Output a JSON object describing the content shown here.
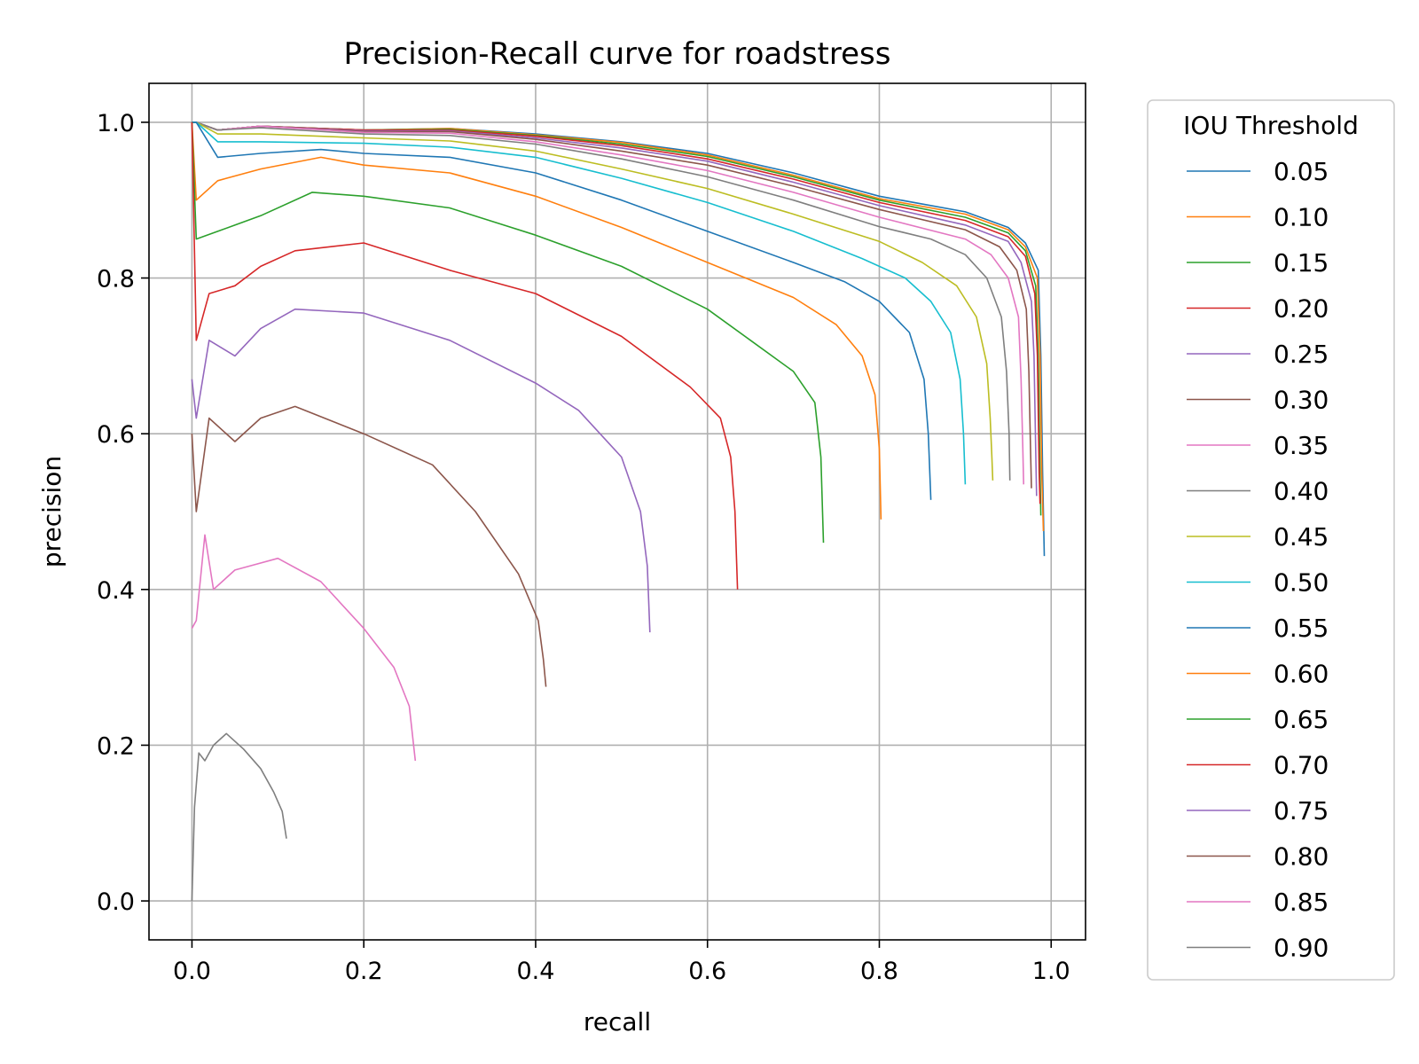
{
  "chart_data": {
    "type": "line",
    "title": "Precision-Recall curve for roadstress",
    "xlabel": "recall",
    "ylabel": "precision",
    "xlim": [
      -0.05,
      1.04
    ],
    "ylim": [
      -0.05,
      1.05
    ],
    "xticks": [
      0.0,
      0.2,
      0.4,
      0.6,
      0.8,
      1.0
    ],
    "xtick_labels": [
      "0.0",
      "0.2",
      "0.4",
      "0.6",
      "0.8",
      "1.0"
    ],
    "yticks": [
      0.0,
      0.2,
      0.4,
      0.6,
      0.8,
      1.0
    ],
    "ytick_labels": [
      "0.0",
      "0.2",
      "0.4",
      "0.6",
      "0.8",
      "1.0"
    ],
    "grid": true,
    "legend": {
      "title": "IOU Threshold",
      "placement": "outside-right"
    },
    "series": [
      {
        "name": "0.05",
        "color": "#1f77b4",
        "points": [
          [
            0.0,
            1.0
          ],
          [
            0.005,
            1.0
          ],
          [
            0.03,
            0.99
          ],
          [
            0.08,
            0.995
          ],
          [
            0.2,
            0.99
          ],
          [
            0.3,
            0.992
          ],
          [
            0.4,
            0.985
          ],
          [
            0.5,
            0.975
          ],
          [
            0.6,
            0.96
          ],
          [
            0.7,
            0.935
          ],
          [
            0.8,
            0.905
          ],
          [
            0.9,
            0.885
          ],
          [
            0.95,
            0.865
          ],
          [
            0.97,
            0.845
          ],
          [
            0.985,
            0.81
          ],
          [
            0.988,
            0.7
          ],
          [
            0.99,
            0.55
          ],
          [
            0.992,
            0.443
          ]
        ]
      },
      {
        "name": "0.10",
        "color": "#ff7f0e",
        "points": [
          [
            0.0,
            1.0
          ],
          [
            0.005,
            1.0
          ],
          [
            0.03,
            0.99
          ],
          [
            0.08,
            0.995
          ],
          [
            0.2,
            0.99
          ],
          [
            0.3,
            0.992
          ],
          [
            0.4,
            0.984
          ],
          [
            0.5,
            0.974
          ],
          [
            0.6,
            0.958
          ],
          [
            0.7,
            0.932
          ],
          [
            0.8,
            0.902
          ],
          [
            0.9,
            0.882
          ],
          [
            0.95,
            0.862
          ],
          [
            0.97,
            0.84
          ],
          [
            0.984,
            0.8
          ],
          [
            0.987,
            0.7
          ],
          [
            0.989,
            0.55
          ],
          [
            0.991,
            0.475
          ]
        ]
      },
      {
        "name": "0.15",
        "color": "#2ca02c",
        "points": [
          [
            0.0,
            1.0
          ],
          [
            0.005,
            1.0
          ],
          [
            0.03,
            0.99
          ],
          [
            0.08,
            0.995
          ],
          [
            0.2,
            0.99
          ],
          [
            0.3,
            0.991
          ],
          [
            0.4,
            0.983
          ],
          [
            0.5,
            0.972
          ],
          [
            0.6,
            0.956
          ],
          [
            0.7,
            0.93
          ],
          [
            0.8,
            0.9
          ],
          [
            0.9,
            0.878
          ],
          [
            0.95,
            0.858
          ],
          [
            0.97,
            0.835
          ],
          [
            0.982,
            0.79
          ],
          [
            0.985,
            0.7
          ],
          [
            0.987,
            0.55
          ],
          [
            0.988,
            0.495
          ]
        ]
      },
      {
        "name": "0.20",
        "color": "#d62728",
        "points": [
          [
            0.0,
            1.0
          ],
          [
            0.005,
            1.0
          ],
          [
            0.03,
            0.99
          ],
          [
            0.08,
            0.995
          ],
          [
            0.2,
            0.99
          ],
          [
            0.3,
            0.99
          ],
          [
            0.4,
            0.982
          ],
          [
            0.5,
            0.97
          ],
          [
            0.6,
            0.953
          ],
          [
            0.7,
            0.927
          ],
          [
            0.8,
            0.897
          ],
          [
            0.9,
            0.874
          ],
          [
            0.95,
            0.853
          ],
          [
            0.97,
            0.828
          ],
          [
            0.981,
            0.78
          ],
          [
            0.984,
            0.7
          ],
          [
            0.986,
            0.55
          ],
          [
            0.987,
            0.51
          ]
        ]
      },
      {
        "name": "0.25",
        "color": "#9467bd",
        "points": [
          [
            0.0,
            1.0
          ],
          [
            0.005,
            1.0
          ],
          [
            0.03,
            0.99
          ],
          [
            0.08,
            0.995
          ],
          [
            0.2,
            0.989
          ],
          [
            0.3,
            0.989
          ],
          [
            0.4,
            0.98
          ],
          [
            0.5,
            0.967
          ],
          [
            0.6,
            0.95
          ],
          [
            0.7,
            0.923
          ],
          [
            0.8,
            0.893
          ],
          [
            0.9,
            0.868
          ],
          [
            0.95,
            0.847
          ],
          [
            0.965,
            0.82
          ],
          [
            0.977,
            0.77
          ],
          [
            0.98,
            0.7
          ],
          [
            0.982,
            0.58
          ],
          [
            0.983,
            0.52
          ]
        ]
      },
      {
        "name": "0.30",
        "color": "#8c564b",
        "points": [
          [
            0.0,
            1.0
          ],
          [
            0.005,
            1.0
          ],
          [
            0.03,
            0.99
          ],
          [
            0.08,
            0.995
          ],
          [
            0.2,
            0.988
          ],
          [
            0.3,
            0.988
          ],
          [
            0.4,
            0.978
          ],
          [
            0.5,
            0.963
          ],
          [
            0.6,
            0.945
          ],
          [
            0.7,
            0.918
          ],
          [
            0.8,
            0.888
          ],
          [
            0.9,
            0.862
          ],
          [
            0.94,
            0.84
          ],
          [
            0.96,
            0.81
          ],
          [
            0.971,
            0.76
          ],
          [
            0.974,
            0.68
          ],
          [
            0.976,
            0.58
          ],
          [
            0.977,
            0.53
          ]
        ]
      },
      {
        "name": "0.35",
        "color": "#e377c2",
        "points": [
          [
            0.0,
            1.0
          ],
          [
            0.005,
            1.0
          ],
          [
            0.03,
            0.99
          ],
          [
            0.08,
            0.995
          ],
          [
            0.2,
            0.987
          ],
          [
            0.3,
            0.986
          ],
          [
            0.4,
            0.975
          ],
          [
            0.5,
            0.958
          ],
          [
            0.6,
            0.938
          ],
          [
            0.7,
            0.91
          ],
          [
            0.8,
            0.878
          ],
          [
            0.9,
            0.85
          ],
          [
            0.93,
            0.83
          ],
          [
            0.95,
            0.8
          ],
          [
            0.962,
            0.75
          ],
          [
            0.965,
            0.67
          ],
          [
            0.967,
            0.58
          ],
          [
            0.968,
            0.535
          ]
        ]
      },
      {
        "name": "0.40",
        "color": "#7f7f7f",
        "points": [
          [
            0.0,
            1.0
          ],
          [
            0.005,
            1.0
          ],
          [
            0.03,
            0.99
          ],
          [
            0.08,
            0.993
          ],
          [
            0.2,
            0.985
          ],
          [
            0.3,
            0.983
          ],
          [
            0.4,
            0.972
          ],
          [
            0.5,
            0.953
          ],
          [
            0.6,
            0.93
          ],
          [
            0.7,
            0.9
          ],
          [
            0.8,
            0.866
          ],
          [
            0.86,
            0.85
          ],
          [
            0.9,
            0.83
          ],
          [
            0.925,
            0.8
          ],
          [
            0.942,
            0.75
          ],
          [
            0.948,
            0.68
          ],
          [
            0.951,
            0.6
          ],
          [
            0.952,
            0.54
          ]
        ]
      },
      {
        "name": "0.45",
        "color": "#bcbd22",
        "points": [
          [
            0.0,
            1.0
          ],
          [
            0.005,
            1.0
          ],
          [
            0.03,
            0.985
          ],
          [
            0.08,
            0.985
          ],
          [
            0.2,
            0.98
          ],
          [
            0.3,
            0.976
          ],
          [
            0.4,
            0.963
          ],
          [
            0.5,
            0.94
          ],
          [
            0.6,
            0.915
          ],
          [
            0.7,
            0.882
          ],
          [
            0.8,
            0.847
          ],
          [
            0.85,
            0.82
          ],
          [
            0.89,
            0.79
          ],
          [
            0.913,
            0.75
          ],
          [
            0.925,
            0.69
          ],
          [
            0.929,
            0.62
          ],
          [
            0.931,
            0.57
          ],
          [
            0.932,
            0.54
          ]
        ]
      },
      {
        "name": "0.50",
        "color": "#17becf",
        "points": [
          [
            0.0,
            1.0
          ],
          [
            0.005,
            1.0
          ],
          [
            0.03,
            0.975
          ],
          [
            0.08,
            0.975
          ],
          [
            0.2,
            0.973
          ],
          [
            0.3,
            0.968
          ],
          [
            0.4,
            0.955
          ],
          [
            0.5,
            0.928
          ],
          [
            0.6,
            0.897
          ],
          [
            0.7,
            0.86
          ],
          [
            0.78,
            0.825
          ],
          [
            0.83,
            0.8
          ],
          [
            0.86,
            0.77
          ],
          [
            0.883,
            0.73
          ],
          [
            0.894,
            0.67
          ],
          [
            0.898,
            0.6
          ],
          [
            0.9,
            0.535
          ]
        ]
      },
      {
        "name": "0.55",
        "color": "#1f77b4",
        "points": [
          [
            0.0,
            1.0
          ],
          [
            0.005,
            1.0
          ],
          [
            0.03,
            0.955
          ],
          [
            0.08,
            0.96
          ],
          [
            0.15,
            0.965
          ],
          [
            0.2,
            0.96
          ],
          [
            0.3,
            0.955
          ],
          [
            0.4,
            0.935
          ],
          [
            0.5,
            0.9
          ],
          [
            0.6,
            0.86
          ],
          [
            0.7,
            0.82
          ],
          [
            0.76,
            0.795
          ],
          [
            0.8,
            0.77
          ],
          [
            0.835,
            0.73
          ],
          [
            0.852,
            0.67
          ],
          [
            0.857,
            0.6
          ],
          [
            0.86,
            0.515
          ]
        ]
      },
      {
        "name": "0.60",
        "color": "#ff7f0e",
        "points": [
          [
            0.0,
            1.0
          ],
          [
            0.005,
            0.9
          ],
          [
            0.03,
            0.925
          ],
          [
            0.08,
            0.94
          ],
          [
            0.15,
            0.955
          ],
          [
            0.2,
            0.945
          ],
          [
            0.3,
            0.935
          ],
          [
            0.4,
            0.905
          ],
          [
            0.5,
            0.865
          ],
          [
            0.6,
            0.82
          ],
          [
            0.7,
            0.775
          ],
          [
            0.75,
            0.74
          ],
          [
            0.78,
            0.7
          ],
          [
            0.795,
            0.65
          ],
          [
            0.8,
            0.58
          ],
          [
            0.802,
            0.49
          ]
        ]
      },
      {
        "name": "0.65",
        "color": "#2ca02c",
        "points": [
          [
            0.0,
            1.0
          ],
          [
            0.005,
            0.85
          ],
          [
            0.03,
            0.86
          ],
          [
            0.08,
            0.88
          ],
          [
            0.14,
            0.91
          ],
          [
            0.2,
            0.905
          ],
          [
            0.3,
            0.89
          ],
          [
            0.4,
            0.855
          ],
          [
            0.5,
            0.815
          ],
          [
            0.6,
            0.76
          ],
          [
            0.65,
            0.72
          ],
          [
            0.7,
            0.68
          ],
          [
            0.725,
            0.64
          ],
          [
            0.732,
            0.57
          ],
          [
            0.735,
            0.46
          ]
        ]
      },
      {
        "name": "0.70",
        "color": "#d62728",
        "points": [
          [
            0.0,
            1.0
          ],
          [
            0.005,
            0.72
          ],
          [
            0.02,
            0.78
          ],
          [
            0.05,
            0.79
          ],
          [
            0.08,
            0.815
          ],
          [
            0.12,
            0.835
          ],
          [
            0.2,
            0.845
          ],
          [
            0.3,
            0.81
          ],
          [
            0.4,
            0.78
          ],
          [
            0.5,
            0.725
          ],
          [
            0.58,
            0.66
          ],
          [
            0.615,
            0.62
          ],
          [
            0.627,
            0.57
          ],
          [
            0.632,
            0.5
          ],
          [
            0.635,
            0.4
          ]
        ]
      },
      {
        "name": "0.75",
        "color": "#9467bd",
        "points": [
          [
            0.0,
            0.67
          ],
          [
            0.005,
            0.62
          ],
          [
            0.02,
            0.72
          ],
          [
            0.05,
            0.7
          ],
          [
            0.08,
            0.735
          ],
          [
            0.12,
            0.76
          ],
          [
            0.2,
            0.755
          ],
          [
            0.3,
            0.72
          ],
          [
            0.4,
            0.665
          ],
          [
            0.45,
            0.63
          ],
          [
            0.5,
            0.57
          ],
          [
            0.522,
            0.5
          ],
          [
            0.53,
            0.43
          ],
          [
            0.533,
            0.345
          ]
        ]
      },
      {
        "name": "0.80",
        "color": "#8c564b",
        "points": [
          [
            0.0,
            0.6
          ],
          [
            0.005,
            0.5
          ],
          [
            0.02,
            0.62
          ],
          [
            0.05,
            0.59
          ],
          [
            0.08,
            0.62
          ],
          [
            0.12,
            0.635
          ],
          [
            0.2,
            0.6
          ],
          [
            0.28,
            0.56
          ],
          [
            0.33,
            0.5
          ],
          [
            0.38,
            0.42
          ],
          [
            0.403,
            0.36
          ],
          [
            0.409,
            0.31
          ],
          [
            0.412,
            0.275
          ]
        ]
      },
      {
        "name": "0.85",
        "color": "#e377c2",
        "points": [
          [
            0.0,
            0.35
          ],
          [
            0.005,
            0.36
          ],
          [
            0.015,
            0.47
          ],
          [
            0.025,
            0.4
          ],
          [
            0.05,
            0.425
          ],
          [
            0.1,
            0.44
          ],
          [
            0.15,
            0.41
          ],
          [
            0.2,
            0.35
          ],
          [
            0.235,
            0.3
          ],
          [
            0.253,
            0.25
          ],
          [
            0.26,
            0.18
          ]
        ]
      },
      {
        "name": "0.90",
        "color": "#7f7f7f",
        "points": [
          [
            0.0,
            0.0
          ],
          [
            0.003,
            0.12
          ],
          [
            0.008,
            0.19
          ],
          [
            0.015,
            0.18
          ],
          [
            0.025,
            0.2
          ],
          [
            0.04,
            0.215
          ],
          [
            0.06,
            0.195
          ],
          [
            0.08,
            0.17
          ],
          [
            0.095,
            0.14
          ],
          [
            0.105,
            0.115
          ],
          [
            0.11,
            0.08
          ]
        ]
      }
    ]
  }
}
